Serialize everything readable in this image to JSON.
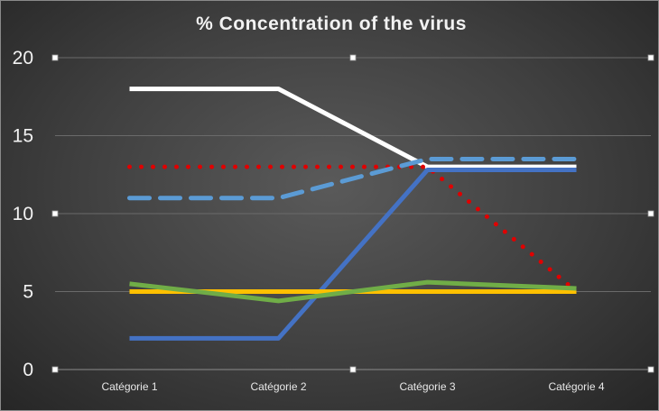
{
  "chart_data": {
    "type": "line",
    "title": "% Concentration of the virus",
    "xlabel": "",
    "ylabel": "",
    "categories": [
      "Catégorie 1",
      "Catégorie 2",
      "Catégorie 3",
      "Catégorie 4"
    ],
    "ylim": [
      0,
      20
    ],
    "yticks": [
      0,
      5,
      10,
      15,
      20
    ],
    "grid": true,
    "legend": "none",
    "series": [
      {
        "values": [
          18,
          18,
          13,
          13
        ],
        "color": "#ffffff",
        "dash": "solid"
      },
      {
        "values": [
          13,
          13,
          13,
          5
        ],
        "color": "#e00000",
        "dash": "dotted"
      },
      {
        "values": [
          11,
          11,
          13.5,
          13.5
        ],
        "color": "#5b9bd5",
        "dash": "dashed"
      },
      {
        "values": [
          2,
          2,
          12.8,
          12.8
        ],
        "color": "#4472c4",
        "dash": "solid"
      },
      {
        "values": [
          5,
          5,
          5,
          5
        ],
        "color": "#ffc000",
        "dash": "solid"
      },
      {
        "values": [
          5.5,
          4.4,
          5.6,
          5.2
        ],
        "color": "#70ad47",
        "dash": "solid"
      }
    ]
  }
}
